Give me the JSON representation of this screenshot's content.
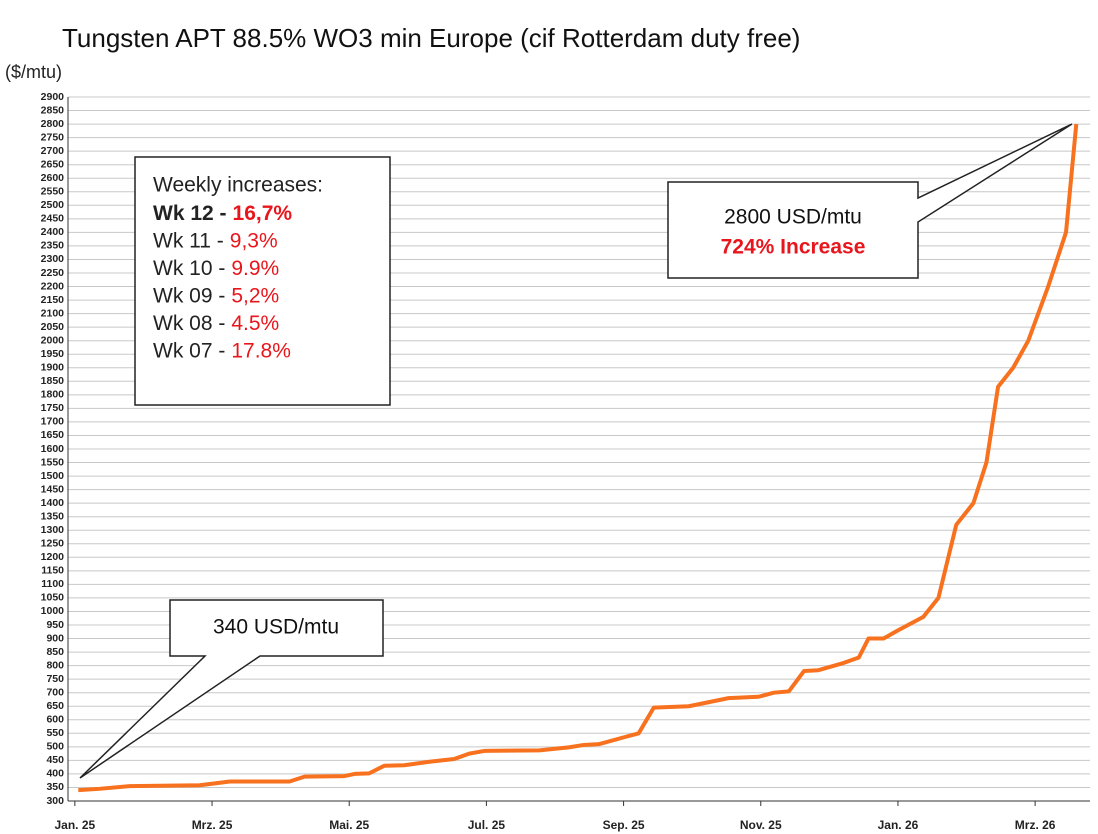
{
  "chart_data": {
    "type": "line",
    "title": "Tungsten APT 88.5% WO3 min Europe (cif Rotterdam duty free)",
    "y_label": "($/mtu)",
    "x": [
      0.05,
      0.36,
      0.8,
      1.82,
      2.04,
      2.26,
      3.13,
      3.35,
      3.93,
      4.08,
      4.29,
      4.51,
      4.8,
      5.17,
      5.53,
      5.75,
      5.97,
      6.77,
      7.2,
      7.42,
      7.64,
      8.0,
      8.22,
      8.44,
      8.95,
      9.53,
      9.97,
      10.19,
      10.41,
      10.63,
      10.84,
      11.21,
      11.43,
      11.57,
      11.79,
      12.0,
      12.37,
      12.59,
      12.85,
      13.1,
      13.29,
      13.46,
      13.68,
      13.9,
      14.19,
      14.45,
      14.6
    ],
    "values": [
      340,
      345,
      355,
      358,
      365,
      372,
      372,
      390,
      392,
      400,
      402,
      430,
      432,
      445,
      455,
      475,
      485,
      487,
      498,
      507,
      510,
      535,
      550,
      645,
      650,
      680,
      685,
      700,
      705,
      780,
      783,
      810,
      830,
      900,
      900,
      930,
      980,
      1050,
      1320,
      1400,
      1550,
      1830,
      1900,
      2000,
      2200,
      2400,
      2800
    ],
    "color": "#f7711e",
    "xlim": [
      -0.1,
      14.8
    ],
    "xticks": [
      {
        "value": 0,
        "label": "Jan. 25"
      },
      {
        "value": 2,
        "label": "Mrz. 25"
      },
      {
        "value": 4,
        "label": "Mai. 25"
      },
      {
        "value": 6,
        "label": "Jul. 25"
      },
      {
        "value": 8,
        "label": "Sep. 25"
      },
      {
        "value": 10,
        "label": "Nov. 25"
      },
      {
        "value": 12,
        "label": "Jan. 26"
      },
      {
        "value": 14,
        "label": "Mrz. 26"
      }
    ],
    "ylim": [
      300,
      2900
    ],
    "yticks": [
      300,
      350,
      400,
      450,
      500,
      550,
      600,
      650,
      700,
      750,
      800,
      850,
      900,
      950,
      1000,
      1050,
      1100,
      1150,
      1200,
      1250,
      1300,
      1350,
      1400,
      1450,
      1500,
      1550,
      1600,
      1650,
      1700,
      1750,
      1800,
      1850,
      1900,
      1950,
      2000,
      2050,
      2100,
      2150,
      2200,
      2250,
      2300,
      2350,
      2400,
      2450,
      2500,
      2550,
      2600,
      2650,
      2700,
      2750,
      2800,
      2850,
      2900
    ],
    "grid": true,
    "annotations": {
      "weekly_title": "Weekly increases:",
      "weekly": [
        {
          "label": "Wk 12 -",
          "value": "16,7%"
        },
        {
          "label": "Wk 11 -",
          "value": "9,3%"
        },
        {
          "label": "Wk 10 -",
          "value": "9.9%"
        },
        {
          "label": "Wk 09 -",
          "value": "5,2%"
        },
        {
          "label": "Wk 08 -",
          "value": "4.5%"
        },
        {
          "label": "Wk 07 -",
          "value": "17.8%"
        }
      ],
      "start_callout": "340 USD/mtu",
      "end_callout": "2800 USD/mtu",
      "end_increase": "724% Increase"
    }
  }
}
